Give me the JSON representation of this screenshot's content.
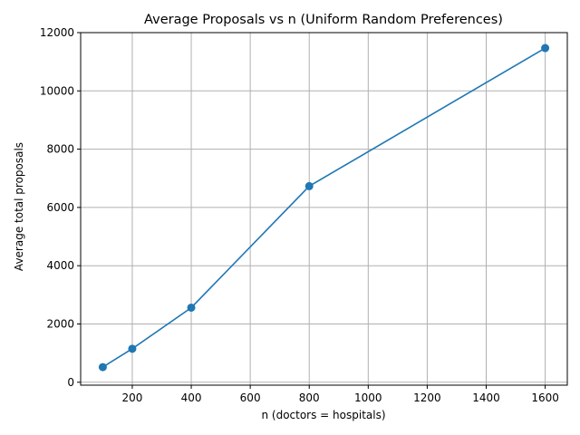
{
  "chart_data": {
    "type": "line",
    "title": "Average Proposals vs n (Uniform Random Preferences)",
    "xlabel": "n (doctors = hospitals)",
    "ylabel": "Average total proposals",
    "x": [
      100,
      200,
      400,
      800,
      1600
    ],
    "series": [
      {
        "values": [
          520,
          1150,
          2560,
          6730,
          11470
        ]
      }
    ],
    "xlim": [
      25,
      1675
    ],
    "ylim": [
      -100,
      12000
    ],
    "xticks": [
      200,
      400,
      600,
      800,
      1000,
      1200,
      1400,
      1600
    ],
    "yticks": [
      0,
      2000,
      4000,
      6000,
      8000,
      10000,
      12000
    ],
    "grid": true,
    "color": "#1f77b4"
  }
}
